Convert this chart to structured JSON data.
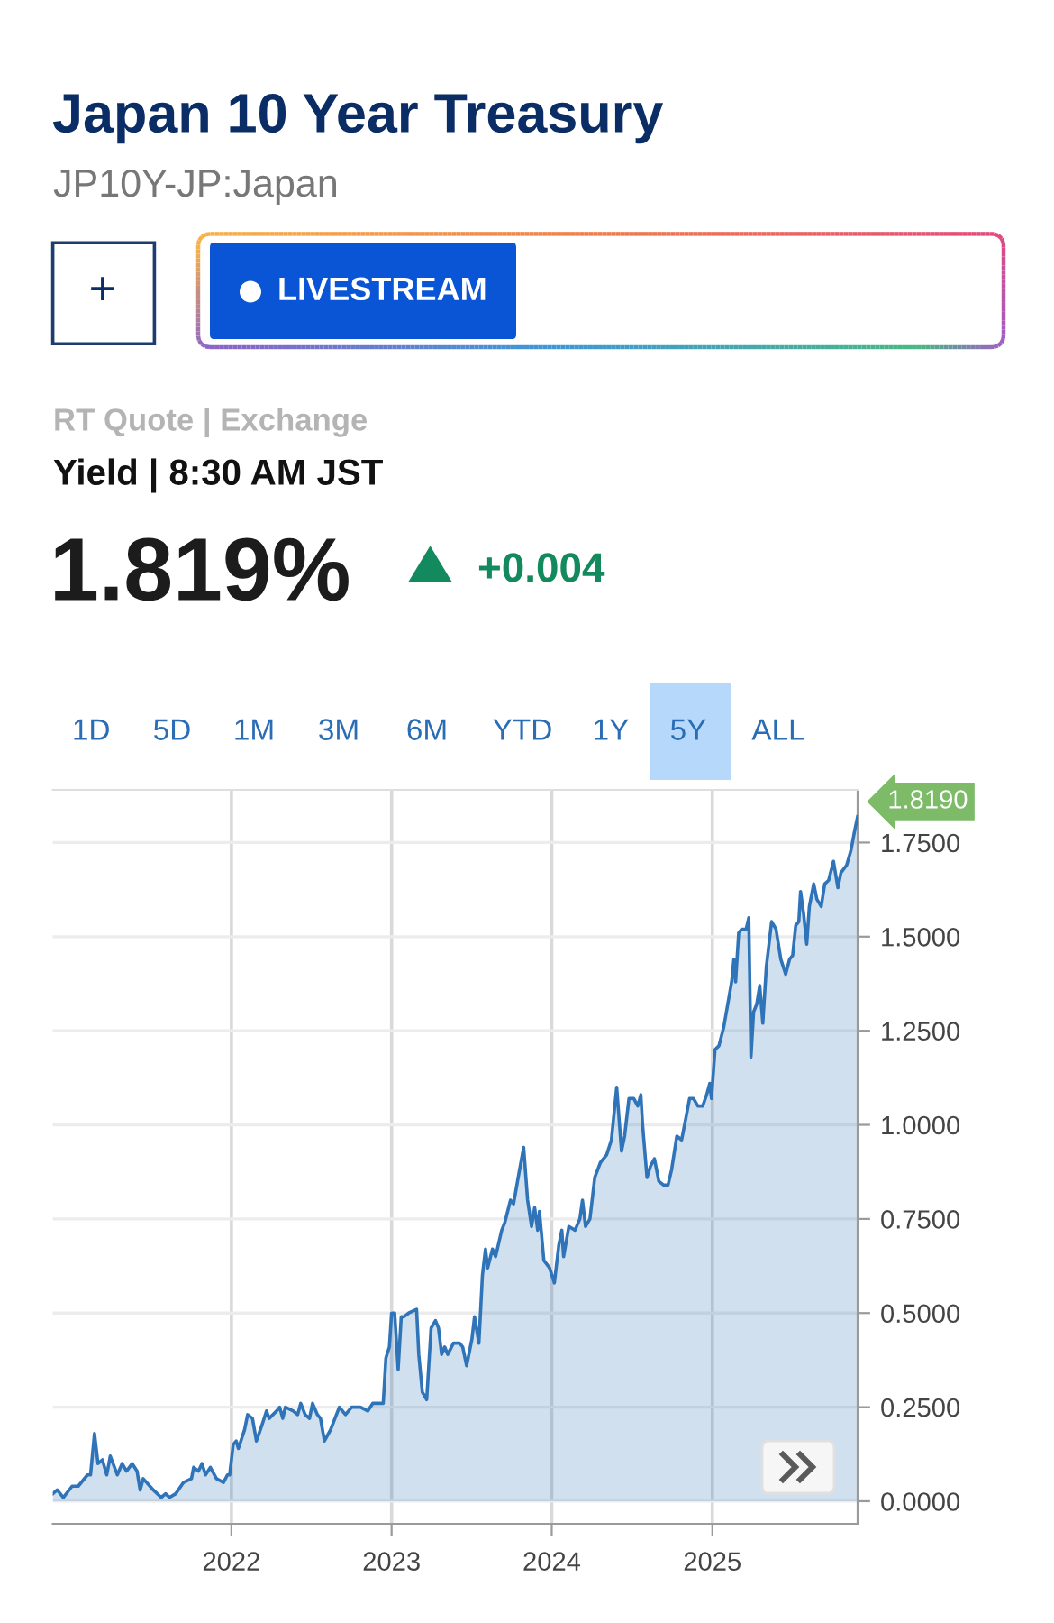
{
  "chart_data": {
    "type": "area",
    "title": "Japan 10 Year Treasury",
    "subtitle": "JP10Y-JP:Japan",
    "annotations": [
      "+",
      "LIVESTREAM",
      "RT Quote | Exchange",
      "Yield | 8:30 AM JST",
      "1.819%",
      "+0.004",
      "1D",
      "5D",
      "1M",
      "3M",
      "6M",
      "YTD",
      "1Y",
      "5Y",
      "ALL",
      {
        "text": "1.8190",
        "x": "2025-11-28",
        "y": 1.819
      }
    ],
    "x": [
      "2020-11-20",
      "2020-11-30",
      "2020-12-14",
      "2021-01-03",
      "2021-01-17",
      "2021-02-07",
      "2021-02-14",
      "2021-02-23",
      "2021-03-03",
      "2021-03-13",
      "2021-03-23",
      "2021-03-31",
      "2021-04-16",
      "2021-04-27",
      "2021-05-07",
      "2021-05-20",
      "2021-05-31",
      "2021-06-07",
      "2021-06-14",
      "2021-07-07",
      "2021-07-25",
      "2021-08-04",
      "2021-08-13",
      "2021-08-27",
      "2021-09-14",
      "2021-10-02",
      "2021-10-07",
      "2021-10-18",
      "2021-10-26",
      "2021-11-03",
      "2021-11-14",
      "2021-11-28",
      "2021-12-14",
      "2021-12-23",
      "2021-12-28",
      "2022-01-05",
      "2022-01-12",
      "2022-01-17",
      "2022-01-31",
      "2022-02-07",
      "2022-02-18",
      "2022-02-27",
      "2022-03-11",
      "2022-03-22",
      "2022-03-28",
      "2022-04-14",
      "2022-04-21",
      "2022-04-28",
      "2022-05-04",
      "2022-05-22",
      "2022-06-01",
      "2022-06-08",
      "2022-06-18",
      "2022-06-28",
      "2022-07-05",
      "2022-07-16",
      "2022-07-23",
      "2022-08-01",
      "2022-08-15",
      "2022-09-04",
      "2022-09-18",
      "2022-10-02",
      "2022-10-22",
      "2022-11-08",
      "2022-11-19",
      "2022-12-02",
      "2022-12-13",
      "2022-12-19",
      "2022-12-27",
      "2023-01-01",
      "2023-01-08",
      "2023-01-16",
      "2023-01-23",
      "2023-01-29",
      "2023-02-09",
      "2023-02-27",
      "2023-03-04",
      "2023-03-12",
      "2023-03-22",
      "2023-04-01",
      "2023-04-11",
      "2023-04-18",
      "2023-04-25",
      "2023-05-02",
      "2023-05-09",
      "2023-05-22",
      "2023-06-05",
      "2023-06-12",
      "2023-06-21",
      "2023-07-03",
      "2023-07-09",
      "2023-07-19",
      "2023-07-27",
      "2023-08-03",
      "2023-08-08",
      "2023-08-19",
      "2023-08-26",
      "2023-09-09",
      "2023-09-16",
      "2023-09-29",
      "2023-10-06",
      "2023-10-15",
      "2023-10-29",
      "2023-11-07",
      "2023-11-16",
      "2023-11-23",
      "2023-11-30",
      "2023-12-04",
      "2023-12-14",
      "2023-12-27",
      "2024-01-07",
      "2024-01-17",
      "2024-01-24",
      "2024-01-28",
      "2024-02-09",
      "2024-02-23",
      "2024-03-05",
      "2024-03-11",
      "2024-03-18",
      "2024-03-28",
      "2024-04-08",
      "2024-04-21",
      "2024-05-05",
      "2024-05-16",
      "2024-05-28",
      "2024-06-08",
      "2024-06-15",
      "2024-06-25",
      "2024-07-06",
      "2024-07-15",
      "2024-07-22",
      "2024-07-26",
      "2024-08-05",
      "2024-08-13",
      "2024-08-22",
      "2024-09-01",
      "2024-09-12",
      "2024-09-22",
      "2024-09-30",
      "2024-10-12",
      "2024-10-23",
      "2024-11-02",
      "2024-11-10",
      "2024-11-19",
      "2024-11-29",
      "2024-12-10",
      "2024-12-19",
      "2024-12-26",
      "2024-12-30",
      "2025-01-07",
      "2025-01-16",
      "2025-01-27",
      "2025-02-05",
      "2025-02-14",
      "2025-02-19",
      "2025-02-23",
      "2025-03-02",
      "2025-03-09",
      "2025-03-19",
      "2025-03-25",
      "2025-03-30",
      "2025-04-05",
      "2025-04-12",
      "2025-04-19",
      "2025-04-26",
      "2025-05-04",
      "2025-05-16",
      "2025-05-26",
      "2025-06-06",
      "2025-06-17",
      "2025-06-26",
      "2025-07-03",
      "2025-07-10",
      "2025-07-17",
      "2025-07-21",
      "2025-07-28",
      "2025-08-04",
      "2025-08-10",
      "2025-08-20",
      "2025-08-27",
      "2025-09-06",
      "2025-09-14",
      "2025-09-23",
      "2025-10-04",
      "2025-10-14",
      "2025-10-21",
      "2025-11-03",
      "2025-11-13",
      "2025-11-21",
      "2025-11-28"
    ],
    "series": [
      {
        "color": "#2f73b8",
        "values": [
          0.02,
          0.03,
          0.01,
          0.04,
          0.04,
          0.07,
          0.07,
          0.18,
          0.1,
          0.11,
          0.07,
          0.12,
          0.07,
          0.1,
          0.08,
          0.1,
          0.08,
          0.03,
          0.06,
          0.03,
          0.01,
          0.02,
          0.01,
          0.02,
          0.05,
          0.06,
          0.09,
          0.08,
          0.1,
          0.07,
          0.09,
          0.06,
          0.05,
          0.07,
          0.07,
          0.15,
          0.16,
          0.14,
          0.19,
          0.23,
          0.22,
          0.16,
          0.2,
          0.24,
          0.22,
          0.24,
          0.25,
          0.22,
          0.25,
          0.24,
          0.23,
          0.26,
          0.23,
          0.22,
          0.26,
          0.23,
          0.22,
          0.16,
          0.19,
          0.25,
          0.23,
          0.25,
          0.25,
          0.24,
          0.26,
          0.26,
          0.26,
          0.38,
          0.41,
          0.5,
          0.5,
          0.35,
          0.49,
          0.49,
          0.5,
          0.51,
          0.39,
          0.29,
          0.27,
          0.46,
          0.48,
          0.46,
          0.39,
          0.41,
          0.39,
          0.42,
          0.42,
          0.41,
          0.36,
          0.43,
          0.49,
          0.42,
          0.6,
          0.67,
          0.62,
          0.67,
          0.65,
          0.72,
          0.74,
          0.8,
          0.79,
          0.85,
          0.94,
          0.8,
          0.73,
          0.78,
          0.72,
          0.77,
          0.64,
          0.62,
          0.58,
          0.68,
          0.72,
          0.65,
          0.73,
          0.72,
          0.75,
          0.8,
          0.73,
          0.75,
          0.86,
          0.9,
          0.92,
          0.96,
          1.1,
          0.93,
          0.97,
          1.07,
          1.07,
          1.05,
          1.08,
          1.0,
          0.86,
          0.89,
          0.91,
          0.85,
          0.84,
          0.84,
          0.88,
          0.97,
          0.96,
          1.02,
          1.07,
          1.07,
          1.05,
          1.05,
          1.08,
          1.11,
          1.07,
          1.2,
          1.21,
          1.26,
          1.32,
          1.38,
          1.44,
          1.38,
          1.51,
          1.52,
          1.52,
          1.55,
          1.18,
          1.3,
          1.32,
          1.37,
          1.27,
          1.42,
          1.54,
          1.52,
          1.44,
          1.4,
          1.44,
          1.45,
          1.53,
          1.54,
          1.62,
          1.56,
          1.48,
          1.58,
          1.64,
          1.6,
          1.58,
          1.64,
          1.65,
          1.7,
          1.63,
          1.67,
          1.69,
          1.73,
          1.78,
          1.819
        ]
      }
    ],
    "xlim": [
      "2020-11-20",
      "2025-11-28"
    ],
    "ylim": [
      -0.06,
      1.89
    ],
    "xticks": [
      {
        "value": "2022-01-01",
        "label": "2022"
      },
      {
        "value": "2023-01-01",
        "label": "2023"
      },
      {
        "value": "2024-01-01",
        "label": "2024"
      },
      {
        "value": "2025-01-01",
        "label": "2025"
      }
    ],
    "yticks": [
      {
        "value": 0,
        "label": "0.0000"
      },
      {
        "value": 0.25,
        "label": "0.2500"
      },
      {
        "value": 0.5,
        "label": "0.5000"
      },
      {
        "value": 0.75,
        "label": "0.7500"
      },
      {
        "value": 1.0,
        "label": "1.0000"
      },
      {
        "value": 1.25,
        "label": "1.2500"
      },
      {
        "value": 1.5,
        "label": "1.5000"
      },
      {
        "value": 1.75,
        "label": "1.7500"
      }
    ],
    "grid": true
  }
}
